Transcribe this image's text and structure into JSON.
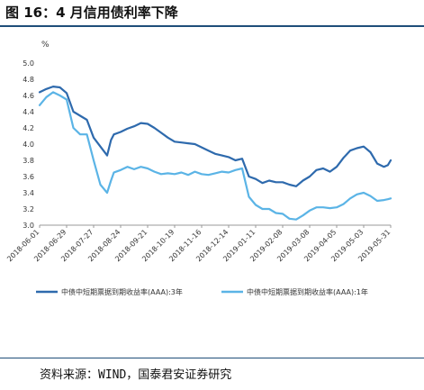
{
  "header": {
    "title": "图 16：4 月信用债利率下降"
  },
  "footer": {
    "source": "资料来源：WIND，国泰君安证券研究"
  },
  "colors": {
    "title_rule": "#1f4e79",
    "series_3y": "#2e6aad",
    "series_1y": "#5bb4e6",
    "axis": "#999999"
  },
  "chart_data": {
    "type": "line",
    "ylabel": "%",
    "ylim": [
      3.0,
      5.0
    ],
    "yticks": [
      "5.0",
      "4.8",
      "4.6",
      "4.4",
      "4.2",
      "4.0",
      "3.8",
      "3.6",
      "3.4",
      "3.2",
      "3.0"
    ],
    "xticks": [
      "2018-06-01",
      "2018-06-29",
      "2018-07-27",
      "2018-08-24",
      "2018-09-21",
      "2018-10-19",
      "2018-11-16",
      "2018-12-14",
      "2019-01-11",
      "2019-02-08",
      "2019-03-08",
      "2019-04-05",
      "2019-05-03",
      "2019-05-31"
    ],
    "x_range": [
      "2018-06-01",
      "2019-05-31"
    ],
    "grid": false,
    "legend_position": "bottom",
    "series": [
      {
        "name": "中债中短期票据到期收益率(AAA):3年",
        "color": "#2e6aad",
        "points": [
          [
            "2018-06-01",
            4.64
          ],
          [
            "2018-06-08",
            4.68
          ],
          [
            "2018-06-15",
            4.71
          ],
          [
            "2018-06-22",
            4.7
          ],
          [
            "2018-06-29",
            4.63
          ],
          [
            "2018-07-06",
            4.4
          ],
          [
            "2018-07-13",
            4.35
          ],
          [
            "2018-07-20",
            4.3
          ],
          [
            "2018-07-27",
            4.08
          ],
          [
            "2018-08-03",
            3.97
          ],
          [
            "2018-08-10",
            3.86
          ],
          [
            "2018-08-14",
            4.05
          ],
          [
            "2018-08-17",
            4.12
          ],
          [
            "2018-08-24",
            4.15
          ],
          [
            "2018-08-31",
            4.19
          ],
          [
            "2018-09-07",
            4.22
          ],
          [
            "2018-09-14",
            4.26
          ],
          [
            "2018-09-21",
            4.25
          ],
          [
            "2018-09-28",
            4.2
          ],
          [
            "2018-10-05",
            4.14
          ],
          [
            "2018-10-12",
            4.08
          ],
          [
            "2018-10-19",
            4.03
          ],
          [
            "2018-10-26",
            4.02
          ],
          [
            "2018-11-02",
            4.01
          ],
          [
            "2018-11-09",
            4.0
          ],
          [
            "2018-11-16",
            3.96
          ],
          [
            "2018-11-23",
            3.92
          ],
          [
            "2018-11-30",
            3.88
          ],
          [
            "2018-12-07",
            3.86
          ],
          [
            "2018-12-14",
            3.84
          ],
          [
            "2018-12-21",
            3.8
          ],
          [
            "2018-12-28",
            3.82
          ],
          [
            "2019-01-04",
            3.6
          ],
          [
            "2019-01-11",
            3.57
          ],
          [
            "2019-01-18",
            3.52
          ],
          [
            "2019-01-25",
            3.55
          ],
          [
            "2019-02-01",
            3.53
          ],
          [
            "2019-02-08",
            3.53
          ],
          [
            "2019-02-15",
            3.5
          ],
          [
            "2019-02-22",
            3.48
          ],
          [
            "2019-03-01",
            3.55
          ],
          [
            "2019-03-08",
            3.6
          ],
          [
            "2019-03-15",
            3.68
          ],
          [
            "2019-03-22",
            3.7
          ],
          [
            "2019-03-29",
            3.66
          ],
          [
            "2019-04-05",
            3.72
          ],
          [
            "2019-04-12",
            3.83
          ],
          [
            "2019-04-19",
            3.92
          ],
          [
            "2019-04-26",
            3.95
          ],
          [
            "2019-05-03",
            3.97
          ],
          [
            "2019-05-10",
            3.9
          ],
          [
            "2019-05-17",
            3.76
          ],
          [
            "2019-05-24",
            3.72
          ],
          [
            "2019-05-28",
            3.74
          ],
          [
            "2019-05-31",
            3.8
          ]
        ]
      },
      {
        "name": "中债中短期票据到期收益率(AAA):1年",
        "color": "#5bb4e6",
        "points": [
          [
            "2018-06-01",
            4.48
          ],
          [
            "2018-06-08",
            4.58
          ],
          [
            "2018-06-15",
            4.64
          ],
          [
            "2018-06-22",
            4.6
          ],
          [
            "2018-06-29",
            4.55
          ],
          [
            "2018-07-06",
            4.2
          ],
          [
            "2018-07-13",
            4.12
          ],
          [
            "2018-07-20",
            4.12
          ],
          [
            "2018-07-27",
            3.8
          ],
          [
            "2018-08-03",
            3.5
          ],
          [
            "2018-08-10",
            3.4
          ],
          [
            "2018-08-14",
            3.55
          ],
          [
            "2018-08-17",
            3.65
          ],
          [
            "2018-08-24",
            3.68
          ],
          [
            "2018-08-31",
            3.72
          ],
          [
            "2018-09-07",
            3.69
          ],
          [
            "2018-09-14",
            3.72
          ],
          [
            "2018-09-21",
            3.7
          ],
          [
            "2018-09-28",
            3.66
          ],
          [
            "2018-10-05",
            3.63
          ],
          [
            "2018-10-12",
            3.64
          ],
          [
            "2018-10-19",
            3.63
          ],
          [
            "2018-10-26",
            3.65
          ],
          [
            "2018-11-02",
            3.62
          ],
          [
            "2018-11-09",
            3.66
          ],
          [
            "2018-11-16",
            3.63
          ],
          [
            "2018-11-23",
            3.62
          ],
          [
            "2018-11-30",
            3.64
          ],
          [
            "2018-12-07",
            3.66
          ],
          [
            "2018-12-14",
            3.65
          ],
          [
            "2018-12-21",
            3.68
          ],
          [
            "2018-12-28",
            3.7
          ],
          [
            "2019-01-04",
            3.35
          ],
          [
            "2019-01-11",
            3.25
          ],
          [
            "2019-01-18",
            3.2
          ],
          [
            "2019-01-25",
            3.2
          ],
          [
            "2019-02-01",
            3.15
          ],
          [
            "2019-02-08",
            3.14
          ],
          [
            "2019-02-15",
            3.08
          ],
          [
            "2019-02-22",
            3.07
          ],
          [
            "2019-03-01",
            3.12
          ],
          [
            "2019-03-08",
            3.18
          ],
          [
            "2019-03-15",
            3.22
          ],
          [
            "2019-03-22",
            3.22
          ],
          [
            "2019-03-29",
            3.21
          ],
          [
            "2019-04-05",
            3.22
          ],
          [
            "2019-04-12",
            3.26
          ],
          [
            "2019-04-19",
            3.33
          ],
          [
            "2019-04-26",
            3.38
          ],
          [
            "2019-05-03",
            3.4
          ],
          [
            "2019-05-10",
            3.36
          ],
          [
            "2019-05-17",
            3.3
          ],
          [
            "2019-05-24",
            3.31
          ],
          [
            "2019-05-28",
            3.32
          ],
          [
            "2019-05-31",
            3.33
          ]
        ]
      }
    ]
  }
}
